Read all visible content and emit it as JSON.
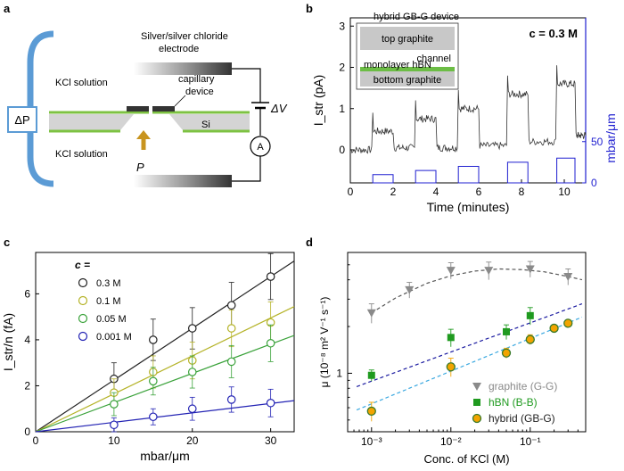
{
  "panels": {
    "a": {
      "letter": "a",
      "electrode_line1": "Silver/silver chloride",
      "electrode_line2": "electrode",
      "kcl_top": "KCl solution",
      "kcl_bottom": "KCl solution",
      "capillary_line1": "capillary",
      "capillary_line2": "device",
      "si": "Si",
      "delta_p": "ΔP",
      "delta_v": "ΔV",
      "pressure": "P",
      "ammeter": "A"
    },
    "b": {
      "letter": "b",
      "inset_title": "hybrid GB-G device",
      "inset_top": "top graphite",
      "inset_channel": "channel",
      "inset_hbn": "monolayer hBN",
      "inset_bottom": "bottom graphite",
      "concentration": "c = 0.3 M"
    },
    "c": {
      "letter": "c",
      "legend_title": "c ="
    },
    "d": {
      "letter": "d"
    }
  },
  "chart_data": [
    {
      "id": "b",
      "type": "line",
      "title": "hybrid GB-G device",
      "xlabel": "Time (minutes)",
      "ylabel": "I_str (pA)",
      "ylabel2": "mbar/μm",
      "xlim": [
        0,
        11
      ],
      "ylim": [
        -0.8,
        3.2
      ],
      "x_ticks": [
        "0",
        "2",
        "4",
        "6",
        "8",
        "10"
      ],
      "y_ticks": [
        "0",
        "1",
        "2",
        "3"
      ],
      "y2_ticks": [
        "0",
        "50"
      ],
      "y2lim": [
        0,
        200
      ],
      "current_series": [
        {
          "t": [
            0.0,
            1.0
          ],
          "level": 0.0
        },
        {
          "t": [
            1.05,
            2.0
          ],
          "level": 0.45
        },
        {
          "t": [
            2.05,
            3.0
          ],
          "level": 0.05
        },
        {
          "t": [
            3.05,
            4.0
          ],
          "level": 0.75
        },
        {
          "t": [
            4.05,
            5.0
          ],
          "level": 0.05
        },
        {
          "t": [
            5.05,
            6.0
          ],
          "level": 1.0
        },
        {
          "t": [
            6.05,
            7.3
          ],
          "level": 0.1
        },
        {
          "t": [
            7.35,
            8.3
          ],
          "level": 1.35
        },
        {
          "t": [
            8.35,
            9.6
          ],
          "level": 0.2
        },
        {
          "t": [
            9.65,
            10.5
          ],
          "level": 1.6
        },
        {
          "t": [
            10.55,
            11.0
          ],
          "level": 0.35
        }
      ],
      "pressure_steps": [
        {
          "t": [
            1.05,
            2.0
          ],
          "value": 10
        },
        {
          "t": [
            3.05,
            4.0
          ],
          "value": 15
        },
        {
          "t": [
            5.05,
            6.0
          ],
          "value": 20
        },
        {
          "t": [
            7.35,
            8.3
          ],
          "value": 25
        },
        {
          "t": [
            9.65,
            10.5
          ],
          "value": 30
        }
      ]
    },
    {
      "id": "c",
      "type": "scatter",
      "xlabel": "mbar/μm",
      "ylabel": "I_str/n (fA)",
      "xlim": [
        0,
        33
      ],
      "ylim": [
        0,
        7.8
      ],
      "x_ticks": [
        0,
        10,
        20,
        30
      ],
      "y_ticks": [
        0,
        2,
        4,
        6
      ],
      "x": [
        10,
        15,
        20,
        25,
        30
      ],
      "series": [
        {
          "name": "0.3 M",
          "color": "#222222",
          "values": [
            2.3,
            4.0,
            4.5,
            5.5,
            6.75
          ],
          "errors": [
            0.7,
            0.9,
            0.9,
            1.0,
            1.0
          ],
          "slope": 0.225
        },
        {
          "name": "0.1 M",
          "color": "#b5b328",
          "values": [
            1.7,
            2.6,
            3.1,
            4.5,
            4.75
          ],
          "errors": [
            0.6,
            0.7,
            0.8,
            0.8,
            0.9
          ],
          "slope": 0.165
        },
        {
          "name": "0.05 M",
          "color": "#3aa23a",
          "values": [
            1.2,
            2.2,
            2.6,
            3.05,
            3.85
          ],
          "errors": [
            0.5,
            0.6,
            0.7,
            0.7,
            0.8
          ],
          "slope": 0.127
        },
        {
          "name": "0.001 M",
          "color": "#2323b4",
          "values": [
            0.3,
            0.65,
            1.0,
            1.4,
            1.25
          ],
          "errors": [
            0.3,
            0.35,
            0.5,
            0.55,
            0.6
          ],
          "slope": 0.041
        }
      ]
    },
    {
      "id": "d",
      "type": "scatter",
      "xlabel": "Conc. of KCl (M)",
      "ylabel": "μ (10⁻⁸ m² V⁻¹ s⁻¹)",
      "xscale": "log",
      "yscale": "log",
      "xlim": [
        0.0005,
        0.5
      ],
      "ylim": [
        0.42,
        6.0
      ],
      "x_ticks": [
        "10⁻³",
        "10⁻²",
        "10⁻¹"
      ],
      "y_ticks": [
        "1"
      ],
      "series": [
        {
          "name": "graphite (G-G)",
          "marker": "triangle-down",
          "color": "#8a8a8a",
          "x": [
            0.001,
            0.003,
            0.01,
            0.03,
            0.1,
            0.3
          ],
          "values": [
            2.45,
            3.45,
            4.6,
            4.6,
            4.7,
            4.2
          ],
          "errors": [
            0.35,
            0.4,
            0.55,
            0.6,
            0.55,
            0.5
          ]
        },
        {
          "name": "hBN (B-B)",
          "marker": "square",
          "color": "#1f9a1f",
          "x": [
            0.001,
            0.01,
            0.05,
            0.1
          ],
          "values": [
            0.97,
            1.7,
            1.85,
            2.35
          ],
          "errors": [
            0.08,
            0.22,
            0.2,
            0.3
          ]
        },
        {
          "name": "hybrid (GB-G)",
          "marker": "circle",
          "color": "#f2a400",
          "x": [
            0.001,
            0.01,
            0.05,
            0.1,
            0.2,
            0.3
          ],
          "values": [
            0.57,
            1.1,
            1.35,
            1.65,
            1.95,
            2.1
          ],
          "errors": [
            0.08,
            0.15,
            0.1,
            0.12,
            0.08,
            0.08
          ]
        }
      ],
      "fit_lines": [
        {
          "name": "graphite fit",
          "color": "#555555",
          "x": [
            0.001,
            0.002,
            0.005,
            0.01,
            0.02,
            0.04,
            0.08,
            0.15,
            0.3,
            0.45
          ],
          "values": [
            2.45,
            3.05,
            3.8,
            4.25,
            4.55,
            4.7,
            4.65,
            4.5,
            4.2,
            4.0
          ]
        },
        {
          "name": "hBN fit",
          "color": "#1a1aa0",
          "x": [
            0.00065,
            0.45
          ],
          "values": [
            0.82,
            2.8
          ]
        },
        {
          "name": "hybrid fit",
          "color": "#3aa8e0",
          "x": [
            0.00065,
            0.45
          ],
          "values": [
            0.58,
            2.3
          ]
        }
      ]
    }
  ]
}
